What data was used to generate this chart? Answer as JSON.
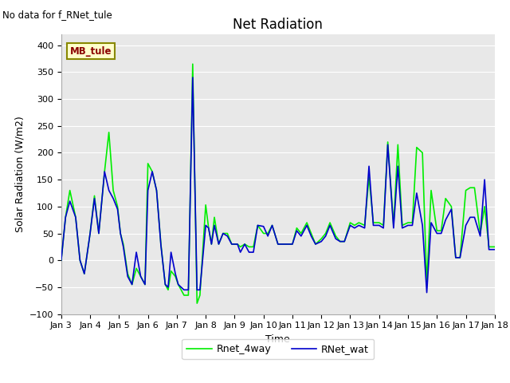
{
  "title": "Net Radiation",
  "xlabel": "Time",
  "ylabel": "Solar Radiation (W/m2)",
  "top_label": "No data for f_RNet_tule",
  "box_label": "MB_tule",
  "ylim": [
    -100,
    420
  ],
  "xlim": [
    0,
    15
  ],
  "x_ticks": [
    0,
    1,
    2,
    3,
    4,
    5,
    6,
    7,
    8,
    9,
    10,
    11,
    12,
    13,
    14,
    15
  ],
  "x_tick_labels": [
    "Jan 3",
    "Jan 4",
    "Jan 5",
    "Jan 6",
    "Jan 7",
    "Jan 8",
    "Jan 9",
    "Jan 10",
    "Jan 11",
    "Jan 12",
    "Jan 13",
    "Jan 14",
    "Jan 15",
    "Jan 16",
    "Jan 17",
    "Jan 18"
  ],
  "rnet_wat_x": [
    0.0,
    0.15,
    0.3,
    0.5,
    0.65,
    0.8,
    1.0,
    1.15,
    1.3,
    1.5,
    1.65,
    1.8,
    1.95,
    2.05,
    2.15,
    2.3,
    2.45,
    2.6,
    2.75,
    2.9,
    3.0,
    3.15,
    3.3,
    3.45,
    3.6,
    3.7,
    3.8,
    3.95,
    4.05,
    4.15,
    4.25,
    4.4,
    4.55,
    4.7,
    4.8,
    5.0,
    5.1,
    5.2,
    5.3,
    5.45,
    5.6,
    5.75,
    5.9,
    6.0,
    6.1,
    6.2,
    6.35,
    6.5,
    6.65,
    6.8,
    7.0,
    7.15,
    7.3,
    7.5,
    7.65,
    7.8,
    8.0,
    8.15,
    8.3,
    8.5,
    8.65,
    8.8,
    9.0,
    9.15,
    9.3,
    9.5,
    9.65,
    9.8,
    10.0,
    10.15,
    10.3,
    10.5,
    10.65,
    10.8,
    11.0,
    11.15,
    11.3,
    11.5,
    11.65,
    11.8,
    12.0,
    12.15,
    12.3,
    12.5,
    12.65,
    12.8,
    13.0,
    13.15,
    13.3,
    13.5,
    13.65,
    13.8,
    14.0,
    14.15,
    14.3,
    14.5,
    14.65,
    14.8,
    15.0
  ],
  "rnet_wat_y": [
    0,
    80,
    110,
    80,
    0,
    -25,
    50,
    115,
    50,
    165,
    130,
    115,
    95,
    50,
    25,
    -30,
    -45,
    15,
    -30,
    -45,
    130,
    165,
    130,
    28,
    -45,
    -50,
    15,
    -25,
    -45,
    -50,
    -55,
    -55,
    340,
    -55,
    -55,
    65,
    60,
    30,
    65,
    30,
    50,
    45,
    30,
    30,
    30,
    15,
    30,
    15,
    15,
    65,
    63,
    45,
    65,
    30,
    30,
    30,
    30,
    55,
    45,
    65,
    45,
    30,
    35,
    45,
    65,
    40,
    35,
    35,
    65,
    60,
    65,
    60,
    175,
    65,
    65,
    60,
    215,
    60,
    175,
    60,
    65,
    65,
    125,
    65,
    -60,
    70,
    50,
    50,
    75,
    95,
    5,
    5,
    65,
    80,
    80,
    45,
    150,
    20,
    20
  ],
  "rnet_4way_x": [
    0.0,
    0.15,
    0.3,
    0.5,
    0.65,
    0.8,
    1.0,
    1.15,
    1.3,
    1.5,
    1.65,
    1.8,
    1.95,
    2.05,
    2.15,
    2.3,
    2.45,
    2.6,
    2.75,
    2.9,
    3.0,
    3.15,
    3.3,
    3.45,
    3.6,
    3.7,
    3.8,
    3.95,
    4.05,
    4.15,
    4.25,
    4.4,
    4.55,
    4.7,
    4.8,
    5.0,
    5.1,
    5.2,
    5.3,
    5.45,
    5.6,
    5.75,
    5.9,
    6.0,
    6.1,
    6.2,
    6.35,
    6.5,
    6.65,
    6.8,
    7.0,
    7.15,
    7.3,
    7.5,
    7.65,
    7.8,
    8.0,
    8.15,
    8.3,
    8.5,
    8.65,
    8.8,
    9.0,
    9.15,
    9.3,
    9.5,
    9.65,
    9.8,
    10.0,
    10.15,
    10.3,
    10.5,
    10.65,
    10.8,
    11.0,
    11.15,
    11.3,
    11.5,
    11.65,
    11.8,
    12.0,
    12.15,
    12.3,
    12.5,
    12.65,
    12.8,
    13.0,
    13.15,
    13.3,
    13.5,
    13.65,
    13.8,
    14.0,
    14.15,
    14.3,
    14.5,
    14.65,
    14.8,
    15.0
  ],
  "rnet_4way_y": [
    0,
    80,
    130,
    80,
    0,
    -25,
    50,
    120,
    50,
    165,
    238,
    130,
    100,
    50,
    30,
    -25,
    -45,
    -15,
    -30,
    -45,
    180,
    165,
    130,
    30,
    -45,
    -55,
    -20,
    -30,
    -45,
    -55,
    -65,
    -65,
    365,
    -80,
    -65,
    103,
    60,
    30,
    80,
    30,
    50,
    50,
    30,
    30,
    30,
    25,
    30,
    25,
    25,
    65,
    50,
    50,
    65,
    30,
    30,
    30,
    30,
    60,
    50,
    70,
    50,
    30,
    40,
    50,
    70,
    45,
    35,
    35,
    70,
    65,
    70,
    65,
    155,
    70,
    70,
    65,
    220,
    65,
    215,
    65,
    70,
    70,
    210,
    200,
    -45,
    130,
    55,
    55,
    115,
    100,
    5,
    5,
    130,
    135,
    135,
    50,
    100,
    25,
    25
  ],
  "rnet_wat_color": "#0000cc",
  "rnet_4way_color": "#00ee00",
  "bg_color": "#e8e8e8",
  "grid_color": "#ffffff",
  "title_fontsize": 12,
  "label_fontsize": 9,
  "tick_fontsize": 8
}
